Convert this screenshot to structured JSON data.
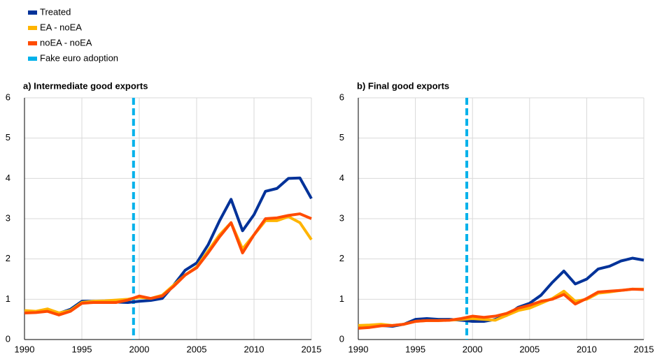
{
  "chart_data": [
    {
      "type": "line",
      "title": "a) Intermediate good exports",
      "x": [
        1990,
        1991,
        1992,
        1993,
        1994,
        1995,
        1996,
        1997,
        1998,
        1999,
        2000,
        2001,
        2002,
        2003,
        2004,
        2005,
        2006,
        2007,
        2008,
        2009,
        2010,
        2011,
        2012,
        2013,
        2014,
        2015
      ],
      "series": [
        {
          "name": "Treated",
          "color": "#003299",
          "values": [
            0.7,
            0.68,
            0.72,
            0.65,
            0.75,
            0.95,
            0.95,
            0.93,
            0.93,
            0.92,
            0.95,
            0.97,
            1.02,
            1.35,
            1.72,
            1.9,
            2.35,
            2.95,
            3.48,
            2.7,
            3.1,
            3.68,
            3.75,
            4.0,
            4.01,
            3.5
          ]
        },
        {
          "name": "EA - noEA",
          "color": "#ffb400",
          "values": [
            0.72,
            0.7,
            0.76,
            0.66,
            0.72,
            0.92,
            0.95,
            0.96,
            0.98,
            1.0,
            1.05,
            1.02,
            1.1,
            1.35,
            1.6,
            1.8,
            2.2,
            2.6,
            2.9,
            2.25,
            2.6,
            2.95,
            2.95,
            3.05,
            2.9,
            2.48
          ]
        },
        {
          "name": "noEA - noEA",
          "color": "#ff4b00",
          "values": [
            0.66,
            0.67,
            0.7,
            0.61,
            0.7,
            0.9,
            0.92,
            0.92,
            0.92,
            0.98,
            1.08,
            1.02,
            1.08,
            1.32,
            1.6,
            1.78,
            2.15,
            2.55,
            2.9,
            2.15,
            2.6,
            3.0,
            3.02,
            3.08,
            3.12,
            3.0
          ]
        }
      ],
      "reference_line": {
        "name": "Fake euro adoption",
        "x": 1999.5,
        "color": "#00b1ea"
      },
      "xlim": [
        1990,
        2015
      ],
      "xticks": [
        1990,
        1995,
        2000,
        2005,
        2010,
        2015
      ],
      "ylim": [
        0,
        6
      ],
      "yticks": [
        0,
        1,
        2,
        3,
        4,
        5,
        6
      ],
      "grid": true
    },
    {
      "type": "line",
      "title": "b) Final good exports",
      "x": [
        1990,
        1991,
        1992,
        1993,
        1994,
        1995,
        1996,
        1997,
        1998,
        1999,
        2000,
        2001,
        2002,
        2003,
        2004,
        2005,
        2006,
        2007,
        2008,
        2009,
        2010,
        2011,
        2012,
        2013,
        2014,
        2015
      ],
      "series": [
        {
          "color": "#003299",
          "values": [
            0.3,
            0.32,
            0.35,
            0.33,
            0.38,
            0.5,
            0.52,
            0.5,
            0.5,
            0.48,
            0.45,
            0.45,
            0.5,
            0.6,
            0.8,
            0.9,
            1.1,
            1.42,
            1.7,
            1.38,
            1.5,
            1.75,
            1.82,
            1.95,
            2.02,
            1.97
          ]
        },
        {
          "color": "#ffb400",
          "values": [
            0.35,
            0.36,
            0.38,
            0.35,
            0.38,
            0.45,
            0.47,
            0.47,
            0.48,
            0.5,
            0.52,
            0.5,
            0.48,
            0.6,
            0.72,
            0.78,
            0.9,
            1.02,
            1.2,
            0.95,
            1.0,
            1.15,
            1.18,
            1.22,
            1.25,
            1.25
          ]
        },
        {
          "color": "#ff4b00",
          "values": [
            0.28,
            0.3,
            0.34,
            0.35,
            0.38,
            0.45,
            0.47,
            0.47,
            0.48,
            0.52,
            0.58,
            0.55,
            0.58,
            0.65,
            0.78,
            0.85,
            0.95,
            1.0,
            1.12,
            0.88,
            1.02,
            1.18,
            1.2,
            1.22,
            1.25,
            1.24
          ]
        }
      ],
      "reference_line": {
        "x": 1999.5,
        "color": "#00b1ea"
      },
      "xlim": [
        1990,
        2015
      ],
      "xticks": [
        1990,
        1995,
        2000,
        2005,
        2010,
        2015
      ],
      "ylim": [
        0,
        6
      ],
      "yticks": [
        0,
        1,
        2,
        3,
        4,
        5,
        6
      ],
      "grid": true
    }
  ]
}
